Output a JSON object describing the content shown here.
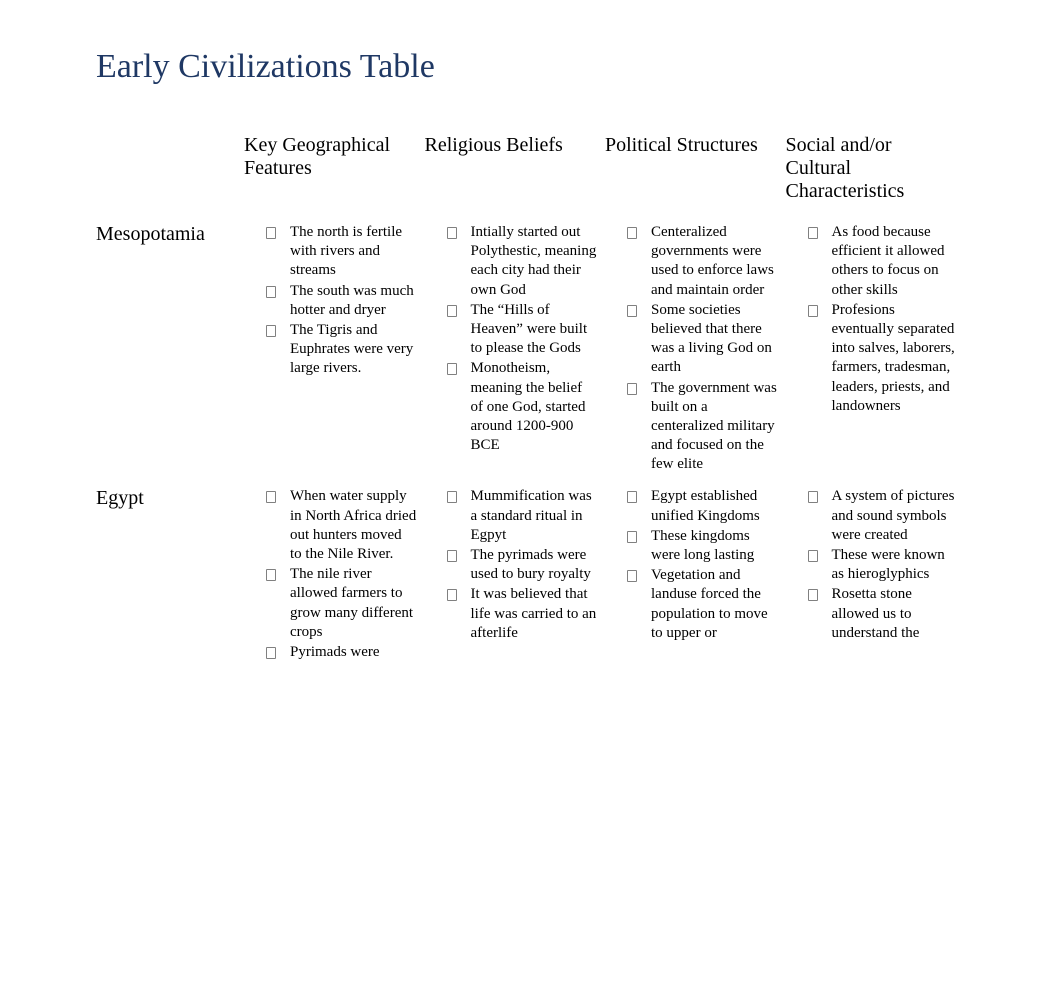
{
  "title": "Early Civilizations Table",
  "columns": [
    "Key Geographical Features",
    "Religious Beliefs",
    "Political Structures",
    "Social and/or Cultural Characteristics"
  ],
  "rows": [
    {
      "name": "Mesopotamia",
      "cells": [
        [
          "The north is fertile with rivers and streams",
          "The south was much hotter and dryer",
          "The Tigris and Euphrates were very large rivers."
        ],
        [
          "Intially started out Polythestic, meaning each city had their own God",
          "The “Hills of Heaven” were built to please the Gods",
          "Monotheism, meaning the belief of one God, started around 1200-900 BCE"
        ],
        [
          "Centeralized governments were used to enforce laws and maintain order",
          "Some societies believed that there was a living God on earth",
          "The government was built on a centeralized military and focused on the few elite"
        ],
        [
          "As food because efficient it allowed others to focus on other skills",
          "Profesions eventually separated into salves, laborers, farmers, tradesman, leaders, priests, and landowners"
        ]
      ]
    },
    {
      "name": "Egypt",
      "cells": [
        [
          "When water supply in North Africa dried out hunters moved to the Nile River.",
          "The nile river allowed farmers to grow many different crops",
          "Pyrimads were"
        ],
        [
          "Mummification was a standard ritual in Egpyt",
          "The pyrimads were used to bury royalty",
          "It was believed that life was carried to an afterlife"
        ],
        [
          "Egypt established unified Kingdoms",
          "These kingdoms were long lasting",
          "Vegetation and landuse forced the population to move to upper or"
        ],
        [
          "A system of pictures and sound symbols were created",
          "These were known as hieroglyphics",
          "Rosetta stone allowed us to understand the"
        ]
      ]
    }
  ]
}
